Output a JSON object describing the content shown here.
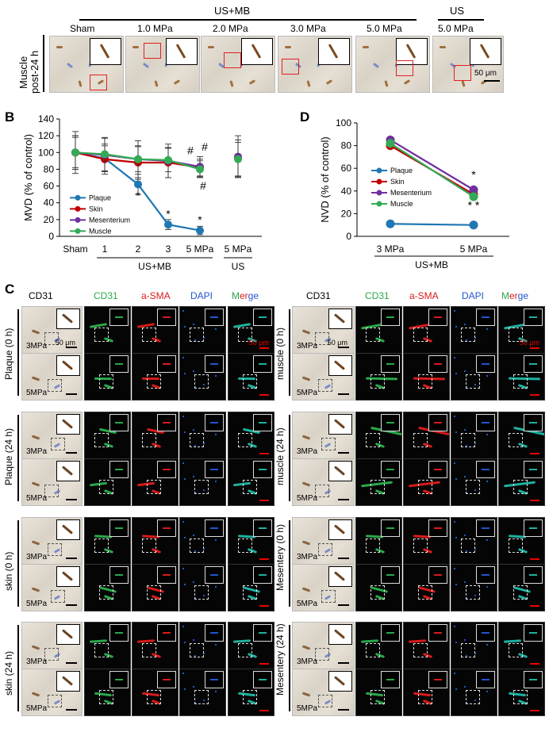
{
  "panelA": {
    "group_header": "US+MB",
    "us_header": "US",
    "columns": [
      "Sham",
      "1.0 MPa",
      "2.0 MPa",
      "3.0 MPa",
      "5.0 MPa",
      "5.0 MPa"
    ],
    "row_label_1": "Muscle",
    "row_label_2": "post-24 h",
    "scale_bar": "50 μm"
  },
  "panelB": {
    "letter": "B",
    "ylabel": "MVD (% of control)",
    "yticks": [
      "0",
      "20",
      "40",
      "60",
      "80",
      "100",
      "120",
      "140"
    ],
    "xticks": [
      "Sham",
      "1",
      "2",
      "3",
      "5 MPa",
      "5 MPa"
    ],
    "group_label": "US+MB",
    "us_label": "US",
    "legend": [
      "Plaque",
      "Skin",
      "Mesenterium",
      "Muscle"
    ],
    "annotations": {
      "star": "*",
      "hash": "#"
    }
  },
  "panelD": {
    "letter": "D",
    "ylabel": "NVD (% of control)",
    "yticks": [
      "0",
      "20",
      "40",
      "60",
      "80",
      "100"
    ],
    "xticks": [
      "3 MPa",
      "5 MPa"
    ],
    "group_label": "US+MB",
    "legend": [
      "Plaque",
      "Skin",
      "Mesenterium",
      "Muscle"
    ],
    "annotations": {
      "star": "*",
      "double_star": "* *"
    }
  },
  "chart_data": [
    {
      "type": "line",
      "panel": "B",
      "categories": [
        "Sham",
        "1",
        "2",
        "3",
        "5 MPa",
        "5 MPa (US)"
      ],
      "ylabel": "MVD (% of control)",
      "ylim": [
        0,
        140
      ],
      "legend_position": "bottom-left",
      "series": [
        {
          "name": "Plaque",
          "color": "#1f77b4",
          "values": [
            100,
            93,
            62,
            14,
            7,
            null
          ],
          "errors": [
            25,
            15,
            12,
            6,
            5,
            null
          ]
        },
        {
          "name": "Skin",
          "color": "#c00000",
          "values": [
            100,
            92,
            88,
            88,
            82,
            93
          ],
          "errors": [
            20,
            18,
            20,
            18,
            10,
            22
          ]
        },
        {
          "name": "Mesenterium",
          "color": "#7030a0",
          "values": [
            100,
            97,
            92,
            90,
            83,
            95
          ],
          "errors": [
            20,
            20,
            22,
            20,
            12,
            25
          ]
        },
        {
          "name": "Muscle",
          "color": "#33aa55",
          "values": [
            100,
            98,
            92,
            91,
            80,
            92
          ],
          "errors": [
            18,
            20,
            15,
            14,
            10,
            20
          ]
        }
      ]
    },
    {
      "type": "line",
      "panel": "D",
      "categories": [
        "3 MPa",
        "5 MPa"
      ],
      "ylabel": "NVD (% of control)",
      "ylim": [
        0,
        100
      ],
      "legend_position": "center-left",
      "series": [
        {
          "name": "Plaque",
          "color": "#1f77b4",
          "values": [
            11,
            10
          ],
          "errors": [
            3,
            4
          ]
        },
        {
          "name": "Skin",
          "color": "#c00000",
          "values": [
            80,
            37
          ],
          "errors": [
            4,
            4
          ]
        },
        {
          "name": "Mesenterium",
          "color": "#7030a0",
          "values": [
            85,
            41
          ],
          "errors": [
            4,
            4
          ]
        },
        {
          "name": "Muscle",
          "color": "#33aa55",
          "values": [
            82,
            35
          ],
          "errors": [
            4,
            4
          ]
        }
      ]
    }
  ],
  "panelC": {
    "letter": "C",
    "headers": [
      "CD31",
      "CD31",
      "a-SMA",
      "DAPI",
      "Merge"
    ],
    "scale_bar": "50 μm",
    "left_groups": [
      "Plaque (0 h)",
      "Plaque (24 h)",
      "skin (0 h)",
      "skin (24 h)"
    ],
    "right_groups": [
      "muscle (0 h)",
      "muscle (24 h)",
      "Mesentery (0 h)",
      "Mesentery (24 h)"
    ],
    "row_pressures": [
      "3MPa",
      "5MPa"
    ]
  }
}
